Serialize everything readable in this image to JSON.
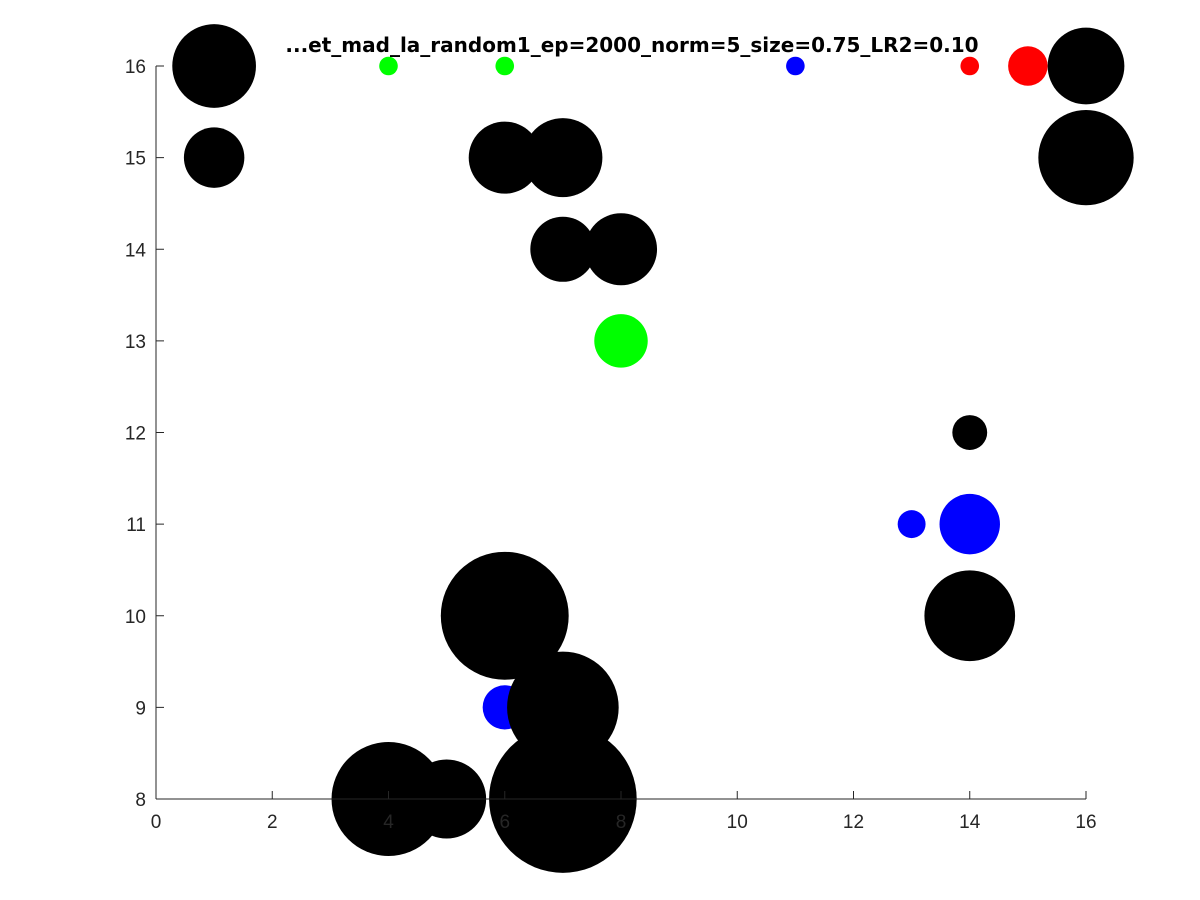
{
  "chart_data": {
    "type": "scatter",
    "title": "...et_mad_la_random1_ep=2000_norm=5_size=0.75_LR2=0.10",
    "xlabel": "",
    "ylabel": "",
    "xlim": [
      0,
      16
    ],
    "ylim": [
      8,
      16
    ],
    "xticks": [
      "0",
      "2",
      "4",
      "6",
      "8",
      "10",
      "12",
      "14",
      "16"
    ],
    "yticks": [
      "8",
      "9",
      "10",
      "11",
      "12",
      "13",
      "14",
      "15",
      "16"
    ],
    "x_tick_values": [
      0,
      2,
      4,
      6,
      8,
      10,
      12,
      14,
      16
    ],
    "y_tick_values": [
      8,
      9,
      10,
      11,
      12,
      13,
      14,
      15,
      16
    ],
    "grid": false,
    "colors": {
      "black": "#000000",
      "green": "#00ff00",
      "blue": "#0000ff",
      "red": "#ff0000"
    },
    "points": [
      {
        "x": 1,
        "y": 16,
        "size": 0.72,
        "color": "black"
      },
      {
        "x": 4,
        "y": 16,
        "size": 0.16,
        "color": "green"
      },
      {
        "x": 6,
        "y": 16,
        "size": 0.16,
        "color": "green"
      },
      {
        "x": 11,
        "y": 16,
        "size": 0.16,
        "color": "blue"
      },
      {
        "x": 14,
        "y": 16,
        "size": 0.16,
        "color": "red"
      },
      {
        "x": 15,
        "y": 16,
        "size": 0.34,
        "color": "red"
      },
      {
        "x": 16,
        "y": 16,
        "size": 0.66,
        "color": "black"
      },
      {
        "x": 1,
        "y": 15,
        "size": 0.52,
        "color": "black"
      },
      {
        "x": 6,
        "y": 15,
        "size": 0.62,
        "color": "black"
      },
      {
        "x": 7,
        "y": 15,
        "size": 0.68,
        "color": "black"
      },
      {
        "x": 16,
        "y": 15,
        "size": 0.82,
        "color": "black"
      },
      {
        "x": 7,
        "y": 14,
        "size": 0.56,
        "color": "black"
      },
      {
        "x": 8,
        "y": 14,
        "size": 0.62,
        "color": "black"
      },
      {
        "x": 8,
        "y": 13,
        "size": 0.46,
        "color": "green"
      },
      {
        "x": 14,
        "y": 12,
        "size": 0.3,
        "color": "black"
      },
      {
        "x": 13,
        "y": 11,
        "size": 0.24,
        "color": "blue"
      },
      {
        "x": 14,
        "y": 11,
        "size": 0.52,
        "color": "blue"
      },
      {
        "x": 14,
        "y": 10,
        "size": 0.78,
        "color": "black"
      },
      {
        "x": 6,
        "y": 10,
        "size": 1.1,
        "color": "black"
      },
      {
        "x": 6,
        "y": 9,
        "size": 0.38,
        "color": "blue"
      },
      {
        "x": 7,
        "y": 9,
        "size": 0.96,
        "color": "black"
      },
      {
        "x": 4,
        "y": 8,
        "size": 0.98,
        "color": "black"
      },
      {
        "x": 5,
        "y": 8,
        "size": 0.68,
        "color": "black"
      },
      {
        "x": 7,
        "y": 8,
        "size": 1.27,
        "color": "black"
      }
    ]
  }
}
